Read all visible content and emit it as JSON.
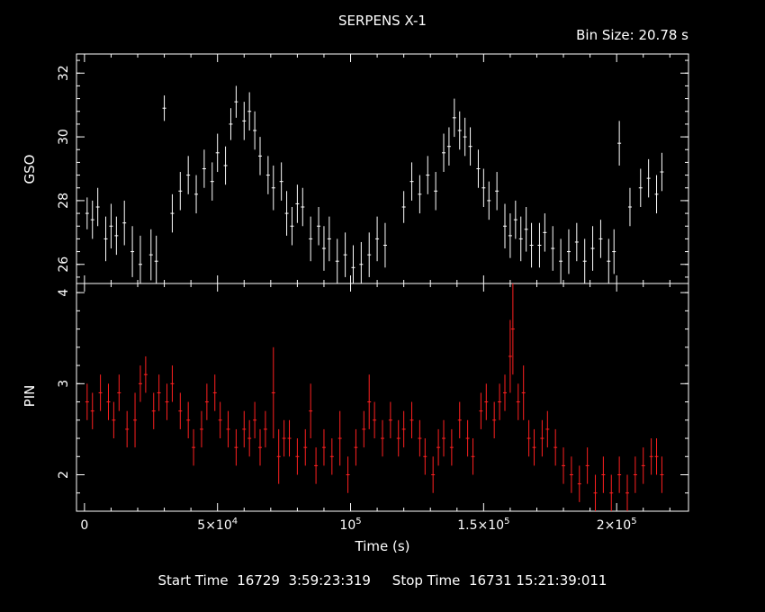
{
  "title": "SERPENS X-1",
  "bin_size": "Bin Size: 20.78 s",
  "footer": {
    "start_label": "Start Time",
    "start_value": "16729  3:59:23:319",
    "stop_label": "Stop Time",
    "stop_value": "16731 15:21:39:011"
  },
  "colors": {
    "background": "#000000",
    "axes": "#ffffff",
    "gso": "#ffffff",
    "pin": "#ff2020"
  },
  "chart_data": [
    {
      "type": "scatter",
      "panel": "top",
      "ylabel": "GSO",
      "ylim": [
        25.4,
        32.6
      ],
      "yticks": [
        26,
        28,
        30,
        32
      ],
      "xlim": [
        -3000,
        227000
      ],
      "error_bars": true,
      "series": [
        {
          "x": [
            1000,
            3000,
            5000,
            8000,
            10000,
            12000,
            15000,
            18000,
            21000,
            25000,
            27000,
            30000,
            33000,
            36000,
            39000,
            42000,
            45000,
            48000,
            50000,
            53000,
            55000,
            57000,
            60000,
            62000,
            64000,
            66000,
            69000,
            71000,
            74000,
            76000,
            78000,
            80000,
            82000,
            85000,
            88000,
            90000,
            92000,
            95000,
            98000,
            101000,
            104000,
            107000,
            110000,
            113000,
            120000,
            123000,
            126000,
            129000,
            132000,
            135000,
            137000,
            139000,
            141000,
            143000,
            145000,
            148000,
            150000,
            152000,
            155000,
            158000,
            160000,
            162000,
            164000,
            166000,
            168000,
            171000,
            173000,
            176000,
            179000,
            182000,
            185000,
            188000,
            191000,
            194000,
            197000,
            199000,
            201000,
            205000,
            209000,
            212000,
            215000,
            217000
          ],
          "y": [
            27.6,
            27.4,
            27.8,
            26.8,
            27.2,
            26.9,
            27.3,
            26.4,
            26.0,
            26.3,
            26.1,
            30.9,
            27.6,
            28.3,
            28.8,
            28.2,
            29.0,
            28.6,
            29.5,
            29.1,
            30.4,
            31.1,
            30.5,
            30.8,
            30.2,
            29.4,
            28.8,
            28.4,
            28.6,
            27.6,
            27.2,
            27.9,
            27.8,
            26.8,
            27.2,
            26.5,
            26.8,
            26.1,
            26.3,
            25.9,
            26.0,
            26.3,
            26.8,
            26.6,
            27.8,
            28.6,
            28.2,
            28.8,
            28.3,
            29.5,
            29.7,
            30.6,
            30.2,
            30.0,
            29.7,
            29.0,
            28.4,
            28.0,
            28.3,
            27.2,
            26.9,
            27.4,
            26.8,
            27.1,
            26.6,
            26.6,
            27.0,
            26.5,
            26.1,
            26.4,
            26.7,
            26.1,
            26.5,
            26.8,
            26.1,
            26.4,
            29.8,
            27.8,
            28.4,
            28.7,
            28.2,
            28.9
          ],
          "yerr": [
            0.5,
            0.6,
            0.6,
            0.7,
            0.7,
            0.6,
            0.7,
            0.8,
            0.9,
            0.8,
            0.8,
            0.4,
            0.6,
            0.6,
            0.6,
            0.6,
            0.6,
            0.6,
            0.6,
            0.6,
            0.5,
            0.5,
            0.6,
            0.6,
            0.6,
            0.6,
            0.6,
            0.7,
            0.6,
            0.7,
            0.6,
            0.6,
            0.6,
            0.7,
            0.6,
            0.7,
            0.7,
            0.7,
            0.7,
            0.7,
            0.7,
            0.7,
            0.7,
            0.7,
            0.5,
            0.6,
            0.6,
            0.6,
            0.6,
            0.6,
            0.6,
            0.6,
            0.6,
            0.6,
            0.6,
            0.6,
            0.6,
            0.6,
            0.6,
            0.7,
            0.7,
            0.6,
            0.7,
            0.7,
            0.7,
            0.7,
            0.6,
            0.7,
            0.7,
            0.7,
            0.6,
            0.7,
            0.7,
            0.6,
            0.7,
            0.7,
            0.7,
            0.6,
            0.6,
            0.6,
            0.6,
            0.6
          ]
        }
      ]
    },
    {
      "type": "scatter",
      "panel": "bottom",
      "ylabel": "PIN",
      "xlabel": "Time (s)",
      "ylim": [
        1.6,
        4.1
      ],
      "yticks": [
        2,
        3,
        4
      ],
      "xlim": [
        -3000,
        227000
      ],
      "xticks": [
        0,
        50000,
        100000,
        150000,
        200000
      ],
      "xtick_labels": [
        "0",
        "5×10^4",
        "10^5",
        "1.5×10^5",
        "2×10^5"
      ],
      "error_bars": true,
      "series": [
        {
          "x": [
            1000,
            3000,
            6000,
            9000,
            11000,
            13000,
            16000,
            19000,
            21000,
            23000,
            26000,
            28000,
            31000,
            33000,
            36000,
            39000,
            41000,
            44000,
            46000,
            49000,
            51000,
            54000,
            57000,
            60000,
            62000,
            64000,
            66000,
            68000,
            71000,
            73000,
            75000,
            77000,
            80000,
            83000,
            85000,
            87000,
            90000,
            93000,
            96000,
            99000,
            102000,
            105000,
            107000,
            109000,
            112000,
            115000,
            118000,
            120000,
            123000,
            126000,
            128000,
            131000,
            133000,
            135000,
            138000,
            141000,
            144000,
            146000,
            149000,
            151000,
            154000,
            156000,
            158000,
            160000,
            161000,
            163000,
            165000,
            167000,
            169000,
            172000,
            174000,
            177000,
            180000,
            183000,
            186000,
            189000,
            192000,
            195000,
            198000,
            201000,
            204000,
            207000,
            210000,
            213000,
            215000,
            217000
          ],
          "y": [
            2.8,
            2.7,
            2.9,
            2.8,
            2.6,
            2.9,
            2.5,
            2.6,
            3.0,
            3.1,
            2.7,
            2.9,
            2.8,
            3.0,
            2.7,
            2.6,
            2.3,
            2.5,
            2.8,
            2.9,
            2.6,
            2.5,
            2.3,
            2.5,
            2.4,
            2.6,
            2.3,
            2.5,
            2.9,
            2.2,
            2.4,
            2.4,
            2.2,
            2.3,
            2.7,
            2.1,
            2.3,
            2.2,
            2.4,
            2.0,
            2.3,
            2.5,
            2.8,
            2.6,
            2.4,
            2.6,
            2.4,
            2.5,
            2.6,
            2.4,
            2.2,
            2.0,
            2.3,
            2.4,
            2.3,
            2.6,
            2.4,
            2.2,
            2.7,
            2.8,
            2.6,
            2.8,
            2.9,
            3.3,
            3.6,
            2.8,
            2.9,
            2.4,
            2.3,
            2.4,
            2.5,
            2.3,
            2.1,
            2.0,
            1.9,
            2.1,
            1.8,
            2.0,
            1.8,
            2.0,
            1.8,
            2.0,
            2.1,
            2.2,
            2.2,
            2.0
          ],
          "yerr": [
            0.2,
            0.2,
            0.2,
            0.2,
            0.2,
            0.2,
            0.2,
            0.3,
            0.2,
            0.2,
            0.2,
            0.2,
            0.2,
            0.2,
            0.2,
            0.2,
            0.2,
            0.2,
            0.2,
            0.2,
            0.2,
            0.2,
            0.2,
            0.2,
            0.2,
            0.2,
            0.2,
            0.2,
            0.5,
            0.3,
            0.2,
            0.2,
            0.2,
            0.2,
            0.3,
            0.2,
            0.2,
            0.2,
            0.3,
            0.2,
            0.2,
            0.2,
            0.3,
            0.2,
            0.2,
            0.2,
            0.2,
            0.2,
            0.2,
            0.2,
            0.2,
            0.2,
            0.2,
            0.2,
            0.2,
            0.2,
            0.2,
            0.2,
            0.2,
            0.2,
            0.2,
            0.2,
            0.2,
            0.4,
            0.5,
            0.2,
            0.3,
            0.2,
            0.2,
            0.2,
            0.2,
            0.2,
            0.2,
            0.2,
            0.2,
            0.2,
            0.2,
            0.2,
            0.2,
            0.2,
            0.2,
            0.2,
            0.2,
            0.2,
            0.2,
            0.2
          ]
        }
      ]
    }
  ]
}
